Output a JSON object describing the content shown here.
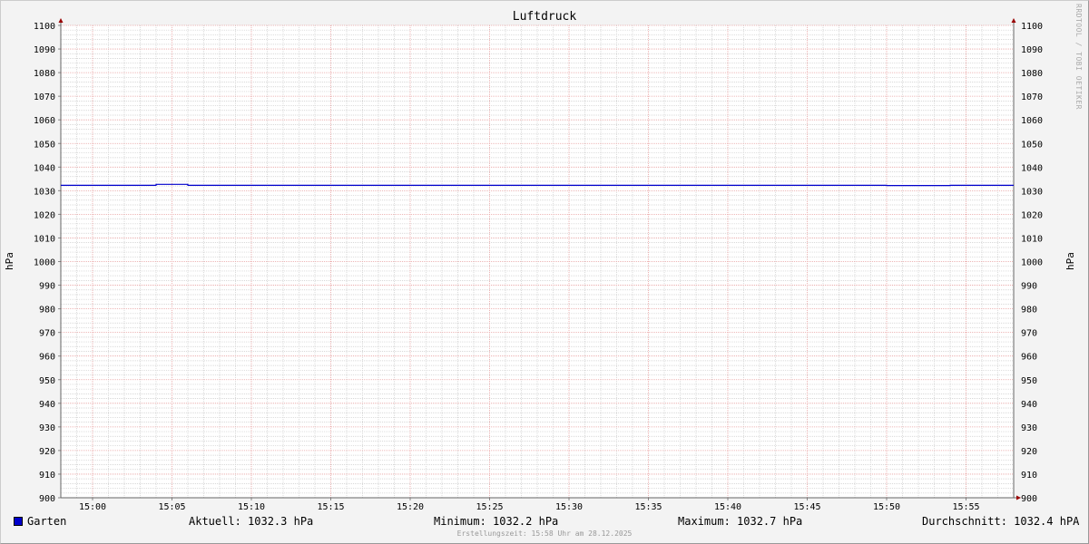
{
  "chart_data": {
    "type": "line",
    "title": "Luftdruck",
    "ylabel": "hPa",
    "ylabel_right": "hPa",
    "ylim": [
      900,
      1100
    ],
    "yticks": [
      900,
      910,
      920,
      930,
      940,
      950,
      960,
      970,
      980,
      990,
      1000,
      1010,
      1020,
      1030,
      1040,
      1050,
      1060,
      1070,
      1080,
      1090,
      1100
    ],
    "xlim": [
      "14:58",
      "15:58"
    ],
    "xticks": [
      "15:00",
      "15:05",
      "15:10",
      "15:15",
      "15:20",
      "15:25",
      "15:30",
      "15:35",
      "15:40",
      "15:45",
      "15:50",
      "15:55"
    ],
    "grid": true,
    "series": [
      {
        "name": "Garten",
        "color": "#0000cc",
        "x": [
          "14:58",
          "15:04",
          "15:04",
          "15:06",
          "15:06",
          "15:50",
          "15:50",
          "15:54",
          "15:54",
          "15:58"
        ],
        "y": [
          1032.3,
          1032.3,
          1032.7,
          1032.7,
          1032.3,
          1032.3,
          1032.2,
          1032.2,
          1032.3,
          1032.3
        ]
      }
    ],
    "legend": {
      "name": "Garten",
      "current": "Aktuell: 1032.3 hPa",
      "minimum": "Minimum: 1032.2 hPa",
      "maximum": "Maximum: 1032.7 hPa",
      "average": "Durchschnitt: 1032.4 hPA"
    },
    "footer": "Erstellungszeit: 15:58 Uhr am 28.12.2025",
    "watermark": "RRDTOOL / TOBI OETIKER"
  }
}
